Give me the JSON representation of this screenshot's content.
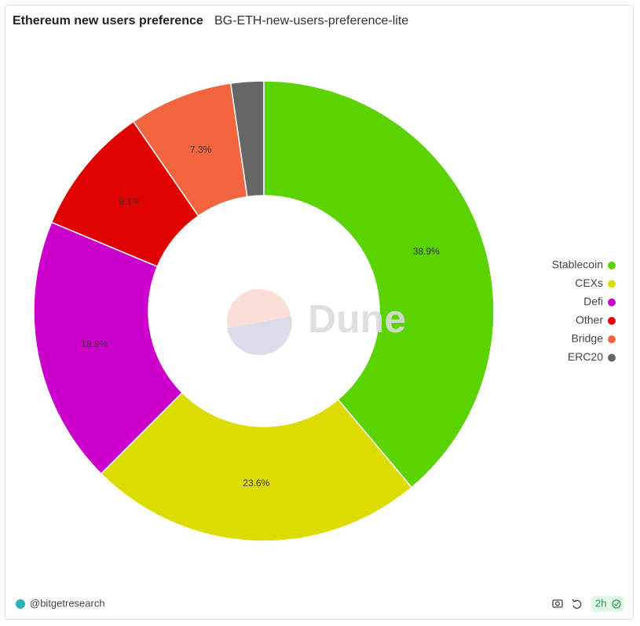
{
  "chart_data": {
    "type": "donut",
    "title": "Ethereum new users preference",
    "subtitle": "BG-ETH-new-users-preference-lite",
    "categories": [
      "Stablecoin",
      "CEXs",
      "Defi",
      "Other",
      "Bridge",
      "ERC20"
    ],
    "values": [
      38.9,
      23.6,
      18.8,
      9.1,
      7.3,
      2.3
    ],
    "value_labels": [
      "38.9%",
      "23.6%",
      "18.8%",
      "9.1%",
      "7.3%",
      null
    ],
    "colors": [
      "#5ad300",
      "#dcdc00",
      "#cc00cc",
      "#e00000",
      "#f2653f",
      "#666666"
    ],
    "legend": "right",
    "watermark": "Dune",
    "author": "@bitgetresearch",
    "refresh_age": "2h"
  }
}
